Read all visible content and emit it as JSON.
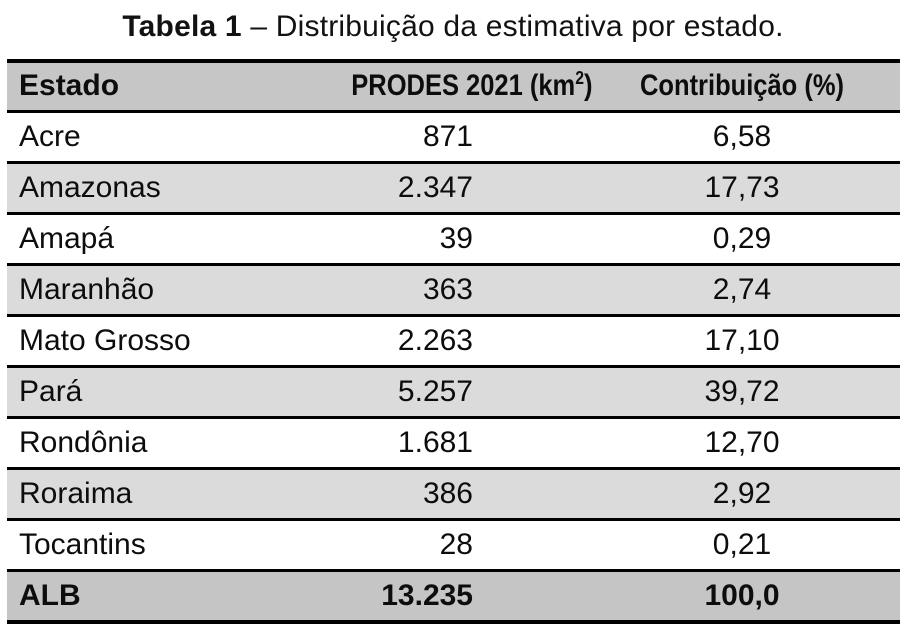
{
  "caption": {
    "label_bold": "Tabela 1",
    "label_rest": " – Distribuição da estimativa por estado."
  },
  "table": {
    "colors": {
      "header_bg": "#c6c6c6",
      "stripe_bg": "#dbdbdb",
      "total_bg": "#c5c5c5",
      "border": "#000000",
      "text": "#0d0d0d"
    },
    "headers": {
      "estado": "Estado",
      "prodes_prefix": "PRODES 2021 (km",
      "prodes_sup": "2",
      "prodes_close": ")",
      "contrib": "Contribuição (%)"
    },
    "rows": [
      {
        "estado": "Acre",
        "prodes": "871",
        "contrib": "6,58"
      },
      {
        "estado": "Amazonas",
        "prodes": "2.347",
        "contrib": "17,73"
      },
      {
        "estado": "Amapá",
        "prodes": "39",
        "contrib": "0,29"
      },
      {
        "estado": "Maranhão",
        "prodes": "363",
        "contrib": "2,74"
      },
      {
        "estado": "Mato Grosso",
        "prodes": "2.263",
        "contrib": "17,10"
      },
      {
        "estado": "Pará",
        "prodes": "5.257",
        "contrib": "39,72"
      },
      {
        "estado": "Rondônia",
        "prodes": "1.681",
        "contrib": "12,70"
      },
      {
        "estado": "Roraima",
        "prodes": "386",
        "contrib": "2,92"
      },
      {
        "estado": "Tocantins",
        "prodes": "28",
        "contrib": "0,21"
      }
    ],
    "total": {
      "estado": "ALB",
      "prodes": "13.235",
      "contrib": "100,0"
    }
  }
}
